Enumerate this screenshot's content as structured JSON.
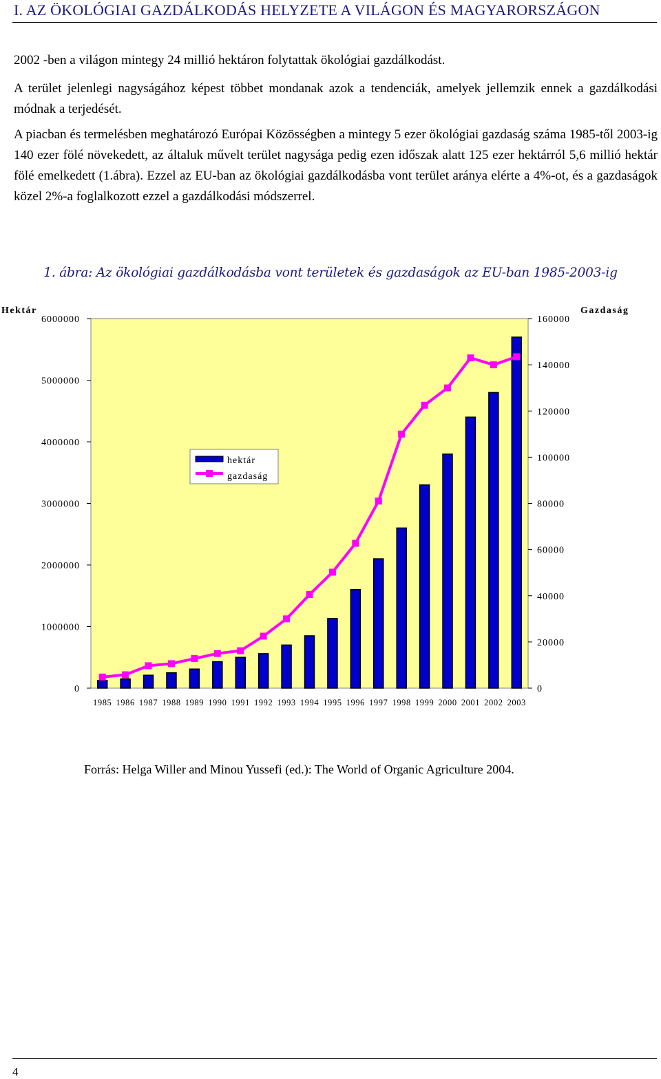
{
  "heading": "I. AZ ÖKOLÓGIAI GAZDÁLKODÁS HELYZETE A VILÁGON ÉS MAGYARORSZÁGON",
  "paragraphs": [
    "2002 -ben a világon mintegy 24 millió hektáron folytattak ökológiai gazdálkodást.",
    "A terület jelenlegi nagyságához képest többet mondanak azok a tendenciák, amelyek jellemzik ennek a gazdálkodási módnak a terjedését.",
    "A piacban és termelésben meghatározó Európai Közösségben a mintegy 5 ezer ökológiai gazdaság száma 1985-től 2003-ig 140 ezer fölé növekedett, az általuk művelt terület nagysága pedig ezen időszak alatt 125 ezer hektárról 5,6 millió hektár fölé emelkedett (1.ábra). Ezzel az EU-ban az ökológiai gazdálkodásba vont terület aránya elérte a 4%-ot, és a gazdaságok közel 2%-a foglalkozott ezzel a gazdálkodási módszerrel."
  ],
  "caption": "1. ábra: Az ökológiai gazdálkodásba vont területek és gazdaságok az EU-ban 1985-2003-ig",
  "chart_data": {
    "type": "bar",
    "y_left_label": "Hektár",
    "y_right_label": "Gazdaság",
    "categories": [
      "1985",
      "1986",
      "1987",
      "1988",
      "1989",
      "1990",
      "1991",
      "1992",
      "1993",
      "1994",
      "1995",
      "1996",
      "1997",
      "1998",
      "1999",
      "2000",
      "2001",
      "2002",
      "2003"
    ],
    "y_left_ticks": [
      "6000000",
      "5000000",
      "4000000",
      "3000000",
      "2000000",
      "1000000",
      "0"
    ],
    "y_right_ticks": [
      "160000",
      "140000",
      "120000",
      "100000",
      "80000",
      "60000",
      "40000",
      "20000",
      "0"
    ],
    "ylim_left": [
      0,
      6000000
    ],
    "ylim_right": [
      0,
      160000
    ],
    "series": [
      {
        "name": "hektár",
        "type": "bar",
        "axis": "left",
        "color": "#0000cc",
        "values": [
          125000,
          150000,
          210000,
          250000,
          310000,
          430000,
          500000,
          560000,
          700000,
          850000,
          1130000,
          1600000,
          2100000,
          2600000,
          3300000,
          3800000,
          4400000,
          4800000,
          5700000
        ]
      },
      {
        "name": "gazdaság",
        "type": "line",
        "axis": "right",
        "color": "#ff00ff",
        "values": [
          4800,
          5800,
          9700,
          10600,
          12800,
          15000,
          16200,
          22500,
          30000,
          40500,
          50200,
          62700,
          81000,
          110000,
          122500,
          130000,
          143000,
          140000,
          143500
        ]
      }
    ],
    "legend_position": "center-left",
    "plot_background": "#ffff99"
  },
  "source": "Forrás: Helga Willer and Minou Yussefi (ed.): The World of Organic Agriculture 2004.",
  "page_number": "4"
}
